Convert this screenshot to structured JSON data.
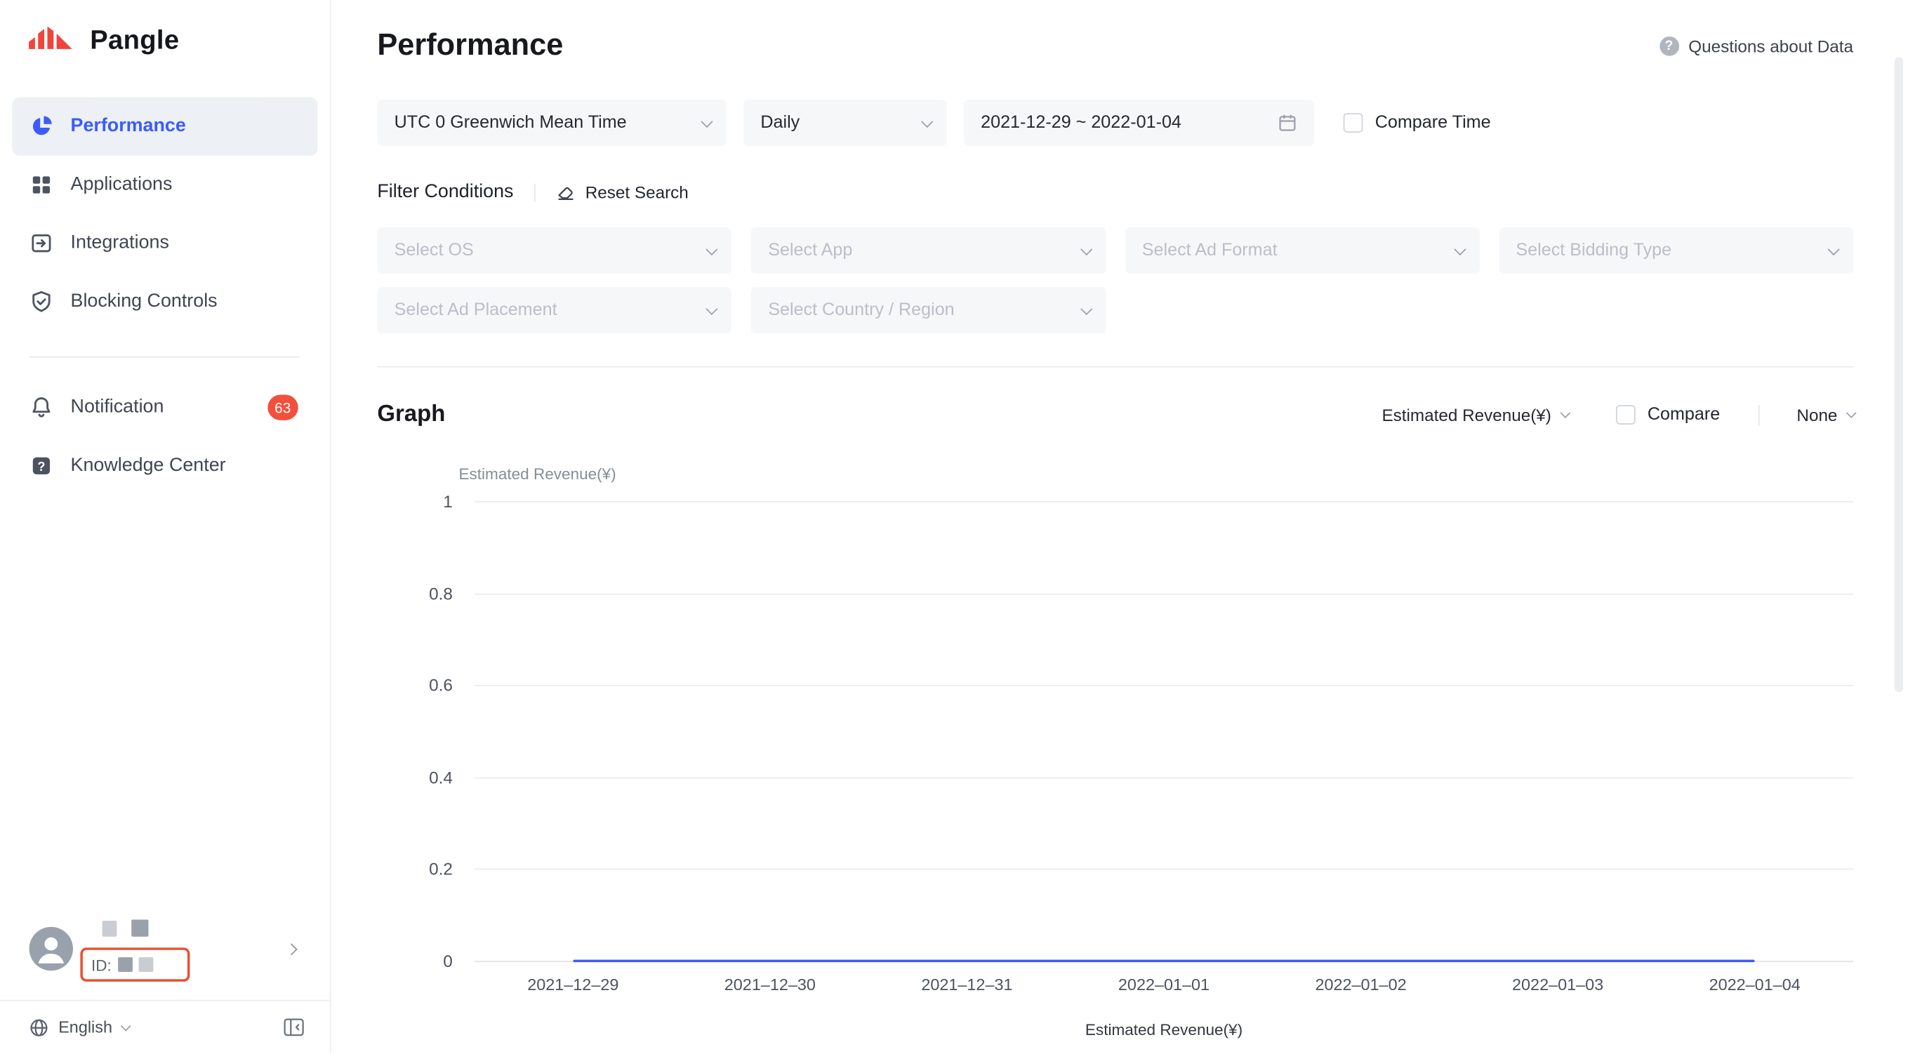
{
  "brand": {
    "name": "Pangle"
  },
  "icons": {
    "question_glyph": "?"
  },
  "sidebar": {
    "items": [
      {
        "label": "Performance"
      },
      {
        "label": "Applications"
      },
      {
        "label": "Integrations"
      },
      {
        "label": "Blocking Controls"
      }
    ],
    "secondary": [
      {
        "label": "Notification",
        "badge": "63"
      },
      {
        "label": "Knowledge Center"
      }
    ],
    "user_id_label": "ID:",
    "language": "English"
  },
  "header": {
    "title": "Performance",
    "help_text": "Questions about Data"
  },
  "filters": {
    "timezone": "UTC 0 Greenwich Mean Time",
    "granularity": "Daily",
    "date_range": "2021-12-29 ~ 2022-01-04",
    "compare_time": "Compare Time",
    "conditions_label": "Filter Conditions",
    "reset_label": "Reset Search",
    "selects": [
      "Select OS",
      "Select App",
      "Select Ad Format",
      "Select Bidding Type",
      "Select Ad Placement",
      "Select Country / Region"
    ]
  },
  "graph": {
    "title": "Graph",
    "metric": "Estimated Revenue(¥)",
    "compare": "Compare",
    "breakdown": "None"
  },
  "chart_data": {
    "type": "line",
    "title": "",
    "ylabel": "Estimated Revenue(¥)",
    "x": [
      "2021–12–29",
      "2021–12–30",
      "2021–12–31",
      "2022–01–01",
      "2022–01–02",
      "2022–01–03",
      "2022–01–04"
    ],
    "series": [
      {
        "name": "Estimated Revenue(¥)",
        "values": [
          0,
          0,
          0,
          0,
          0,
          0,
          0
        ]
      }
    ],
    "ylim": [
      0,
      1
    ],
    "yticks": [
      0,
      0.2,
      0.4,
      0.6,
      0.8,
      1
    ],
    "grid": true,
    "legend_position": "bottom",
    "line_color": "#3d5afe"
  }
}
